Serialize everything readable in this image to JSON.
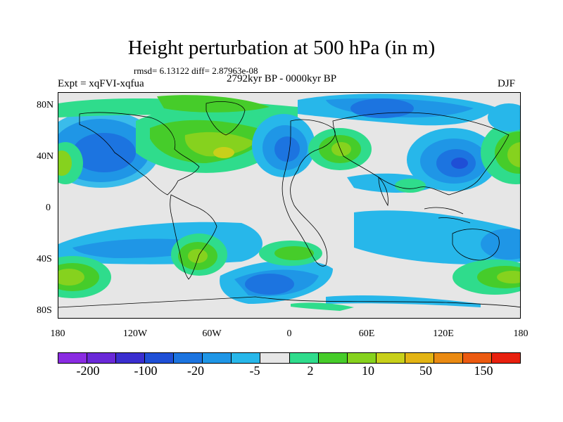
{
  "title": "Height perturbation at 500 hPa (in m)",
  "stats": "rmsd= 6.13122 diff= 2.87963e-08",
  "experiment": "Expt = xqFVI-xqfua",
  "period": "2792kyr BP - 0000kyr BP",
  "season": "DJF",
  "y_ticks": [
    "80N",
    "40N",
    "0",
    "40S",
    "80S"
  ],
  "x_ticks": [
    "180",
    "120W",
    "60W",
    "0",
    "60E",
    "120E",
    "180"
  ],
  "colorbar": {
    "colors": [
      "#8a2be2",
      "#6a28d8",
      "#3a2ecf",
      "#1f4fd6",
      "#1c74e0",
      "#1f96e6",
      "#27b7ea",
      "#e6e6e6",
      "#2fdc8c",
      "#46cc2a",
      "#86d21e",
      "#c8d01a",
      "#e3b414",
      "#ea8a12",
      "#ec5a10",
      "#e8200e"
    ],
    "labels": [
      "-200",
      "-100",
      "-20",
      "-5",
      "2",
      "10",
      "50",
      "150"
    ]
  }
}
